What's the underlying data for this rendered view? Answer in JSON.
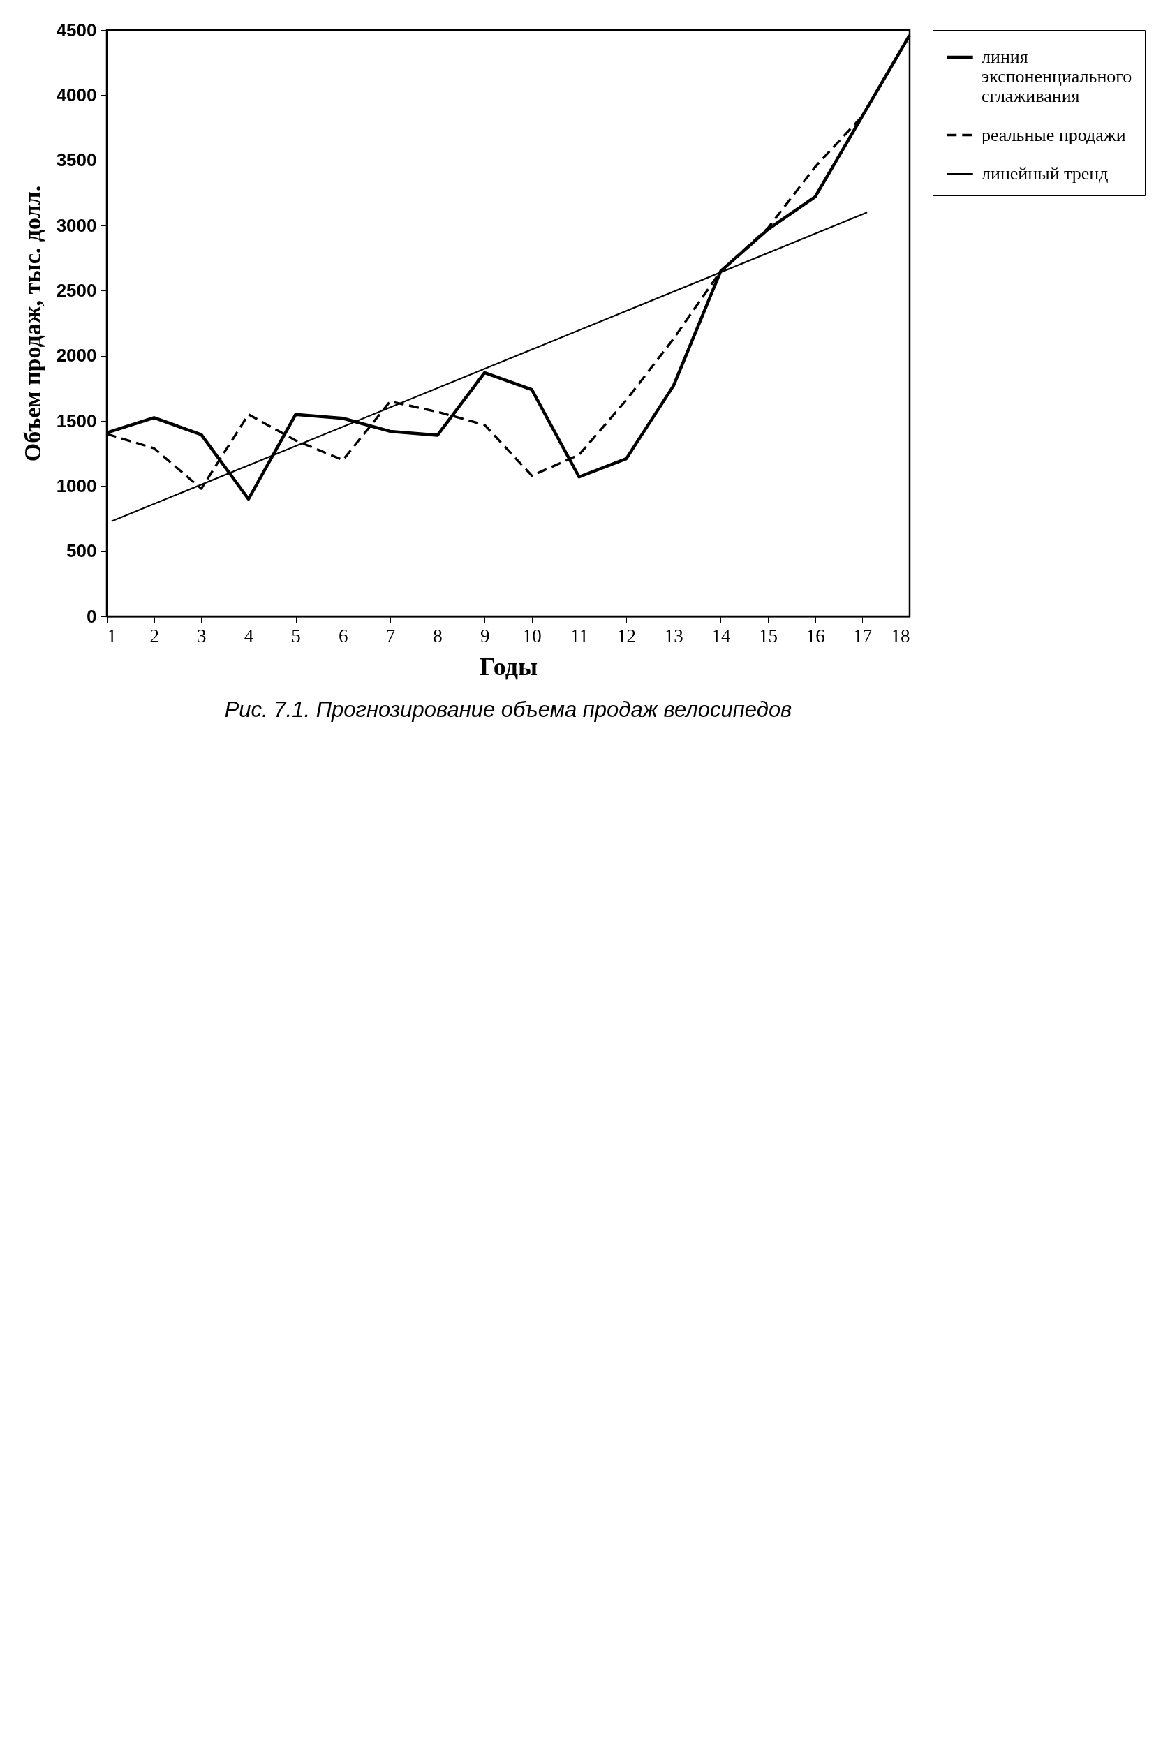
{
  "chart_data": {
    "type": "line",
    "title": "Рис. 7.1. Прогнозирование объема продаж велосипедов",
    "xlabel": "Годы",
    "ylabel": "Объем продаж, тыс. долл.",
    "x": [
      1,
      2,
      3,
      4,
      5,
      6,
      7,
      8,
      9,
      10,
      11,
      12,
      13,
      14,
      15,
      16,
      17,
      18
    ],
    "series": [
      {
        "name": "линия экспоненциального сглаживания",
        "color": "#000000",
        "line_style": "solid",
        "values": [
          1410,
          1525,
          1395,
          900,
          1550,
          1520,
          1420,
          1390,
          1870,
          1740,
          1070,
          1210,
          1770,
          2650,
          2970,
          3220,
          3840,
          4460
        ]
      },
      {
        "name": "реальные продажи",
        "color": "#000000",
        "line_style": "dashed",
        "values": [
          1400,
          1290,
          980,
          1550,
          1350,
          1200,
          1650,
          1570,
          1470,
          1080,
          1240,
          1660,
          2130,
          2650,
          2980,
          3450,
          3840,
          4460
        ]
      },
      {
        "name": "линейный тренд",
        "color": "#000000",
        "type": "line",
        "line_style": "solid",
        "x": [
          1.1,
          17.1
        ],
        "values": [
          730,
          3100
        ]
      }
    ],
    "xlim": [
      1,
      18
    ],
    "xticks": [
      1,
      2,
      3,
      4,
      5,
      6,
      7,
      8,
      9,
      10,
      11,
      12,
      13,
      14,
      15,
      16,
      17,
      18
    ],
    "ylim": [
      0,
      4500
    ],
    "yticks": [
      0,
      500,
      1000,
      1500,
      2000,
      2500,
      3000,
      3500,
      4000,
      4500
    ],
    "grid": false,
    "legend": "right",
    "marker": "none"
  }
}
